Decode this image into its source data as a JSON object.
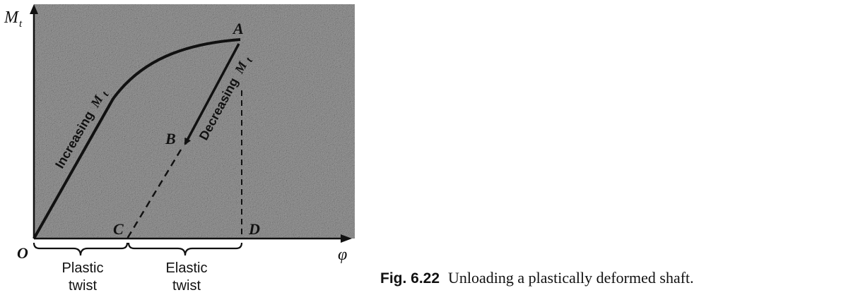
{
  "figure": {
    "axes": {
      "y_label": "M",
      "y_label_sub": "t",
      "x_label": "φ"
    },
    "points": {
      "origin": "O",
      "a": "A",
      "b": "B",
      "c": "C",
      "d": "D"
    },
    "curve_labels": {
      "loading": "Increasing",
      "loading_sym": "M",
      "loading_sub": "t",
      "unloading": "Decreasing",
      "unloading_sym": "M",
      "unloading_sub": "t"
    },
    "braces": {
      "plastic_line1": "Plastic",
      "plastic_line2": "twist",
      "elastic_line1": "Elastic",
      "elastic_line2": "twist"
    },
    "colors": {
      "plot_background": "#9a9a9a",
      "ink": "#111111"
    }
  },
  "caption": {
    "number": "Fig. 6.22",
    "text": "Unloading a plastically deformed shaft."
  }
}
